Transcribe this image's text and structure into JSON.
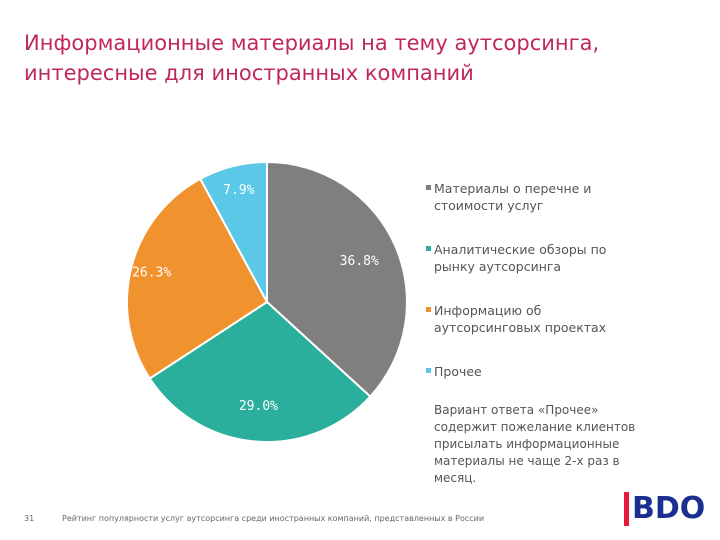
{
  "title": {
    "line1": "Информационные материалы на тему аутсорсинга,",
    "line2": "интересные для иностранных компаний"
  },
  "chart_data": {
    "type": "pie",
    "unit": "%",
    "series": [
      {
        "name": "Материалы о перечне и стоимости услуг",
        "value": 36.8,
        "label": "36.8%",
        "color": "#7f7f7f"
      },
      {
        "name": "Аналитические обзоры по рынку аутсорсинга",
        "value": 29.0,
        "label": "29.0%",
        "color": "#2aaf9d"
      },
      {
        "name": "Информацию об аутсорсинговых проектах",
        "value": 26.3,
        "label": "26.3%",
        "color": "#f0922d"
      },
      {
        "name": "Прочее",
        "value": 7.9,
        "label": "7.9%",
        "color": "#5bc8e8"
      }
    ],
    "start_angle_deg": 0,
    "direction": "clockwise",
    "legend_position": "right"
  },
  "legend": [
    {
      "label": "Материалы о перечне и стоимости услуг",
      "color": "#7f7f7f"
    },
    {
      "label": "Аналитические обзоры по рынку аутсорсинга",
      "color": "#2aaf9d"
    },
    {
      "label": "Информацию об аутсорсинговых проектах",
      "color": "#f0922d"
    },
    {
      "label": "Прочее",
      "color": "#5bc8e8"
    }
  ],
  "note": "Вариант ответа «Прочее» содержит пожелание клиентов присылать информационные материалы не чаще 2-х раз в месяц.",
  "footer": {
    "page_number": "31",
    "text": "Рейтинг популярности услуг аутсорсинга среди иностранных компаний, представленных в России"
  },
  "logo": {
    "text": "BDO",
    "bar_color": "#e81a3b",
    "text_color": "#1a2f8f"
  }
}
